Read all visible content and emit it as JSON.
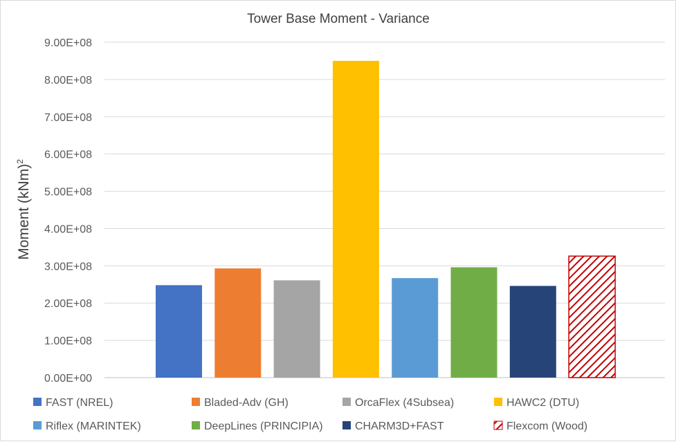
{
  "chart_data": {
    "type": "bar",
    "title": "Tower Base Moment - Variance",
    "ylabel_main": "Moment (kNm)",
    "ylabel_sup": "2",
    "xlabel": "",
    "ylim": [
      0,
      900000000
    ],
    "yticks": [
      0,
      100000000,
      200000000,
      300000000,
      400000000,
      500000000,
      600000000,
      700000000,
      800000000,
      900000000
    ],
    "ytick_labels": [
      "0.00E+00",
      "1.00E+08",
      "2.00E+08",
      "3.00E+08",
      "4.00E+08",
      "5.00E+08",
      "6.00E+08",
      "7.00E+08",
      "8.00E+08",
      "9.00E+08"
    ],
    "grid": true,
    "legend_position": "bottom",
    "series": [
      {
        "name": "FAST (NREL)",
        "value": 248000000,
        "color": "#4472C4",
        "pattern": "solid"
      },
      {
        "name": "Bladed-Adv (GH)",
        "value": 293000000,
        "color": "#ED7D31",
        "pattern": "solid"
      },
      {
        "name": "OrcaFlex (4Subsea)",
        "value": 261000000,
        "color": "#A5A5A5",
        "pattern": "solid"
      },
      {
        "name": "HAWC2 (DTU)",
        "value": 850000000,
        "color": "#FFC000",
        "pattern": "solid"
      },
      {
        "name": "Riflex (MARINTEK)",
        "value": 267000000,
        "color": "#5B9BD5",
        "pattern": "solid"
      },
      {
        "name": "DeepLines (PRINCIPIA)",
        "value": 296000000,
        "color": "#70AD47",
        "pattern": "solid"
      },
      {
        "name": "CHARM3D+FAST",
        "value": 246000000,
        "color": "#264478",
        "pattern": "solid"
      },
      {
        "name": "Flexcom (Wood)",
        "value": 326000000,
        "color": "#C00000",
        "pattern": "hatch"
      }
    ]
  }
}
